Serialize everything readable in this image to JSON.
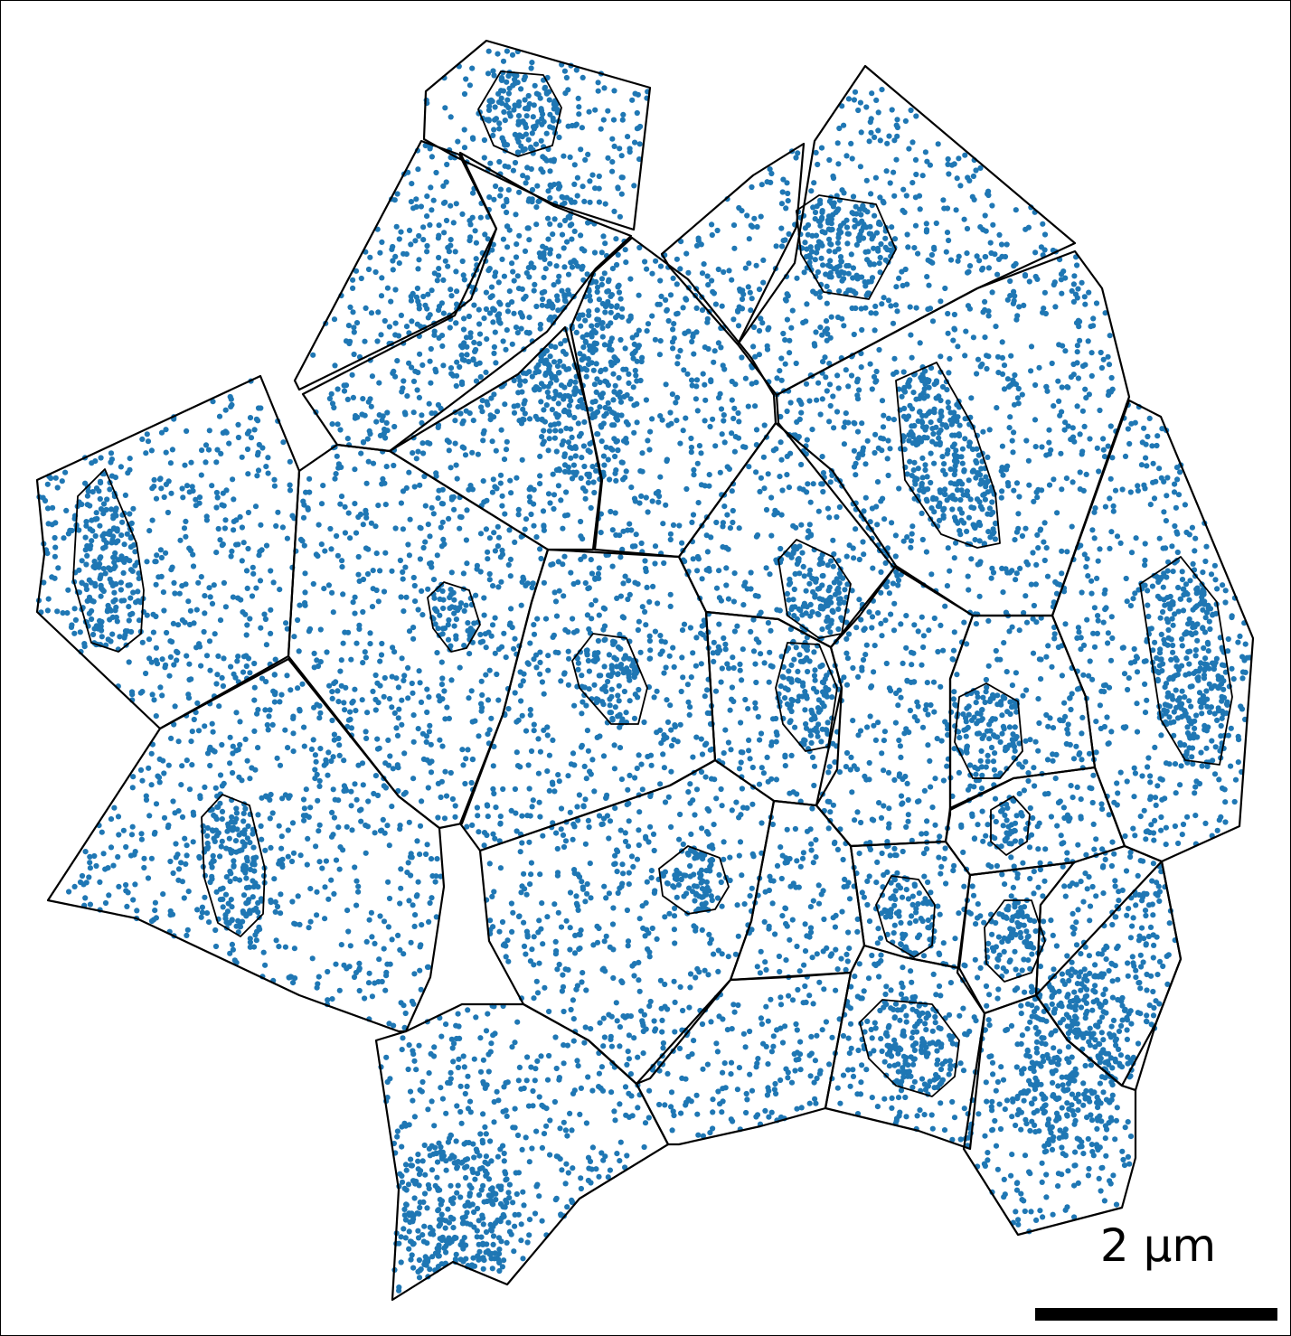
{
  "figure": {
    "scale_bar_label": "2 µm",
    "molecule_color": "#1f77b4",
    "outline_color": "#000000",
    "background_color": "#ffffff",
    "cell_count": 28
  }
}
